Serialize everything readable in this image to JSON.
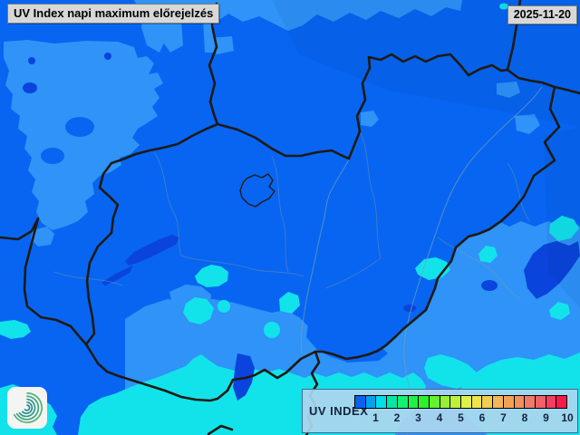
{
  "header": {
    "title": "UV Index napi maximum előrejelzés"
  },
  "date_badge": {
    "value": "2025-11-20"
  },
  "legend": {
    "label": "UV INDEX",
    "tick_labels": [
      "1",
      "2",
      "3",
      "4",
      "5",
      "6",
      "7",
      "8",
      "9",
      "10"
    ],
    "bar_colors": [
      "#0a62f0",
      "#00a2f0",
      "#00dfe8",
      "#00e8a8",
      "#14f074",
      "#22f048",
      "#2df02d",
      "#66f02d",
      "#97f035",
      "#bff03c",
      "#dff046",
      "#f0e44b",
      "#f0cc50",
      "#f0b657",
      "#f0a356",
      "#f0925e",
      "#f07a6a",
      "#f06168",
      "#f23f5e",
      "#f5194e"
    ]
  },
  "map": {
    "colors": {
      "base": "#0765f2",
      "light": "#2f93f8",
      "cyan": "#12e3ea",
      "dark": "#0a44dc",
      "border": "#1f1a12",
      "river": "#76a0b5",
      "county": "#93a08a"
    }
  },
  "icons": {
    "logo": "spiral-meteorology-logo"
  }
}
